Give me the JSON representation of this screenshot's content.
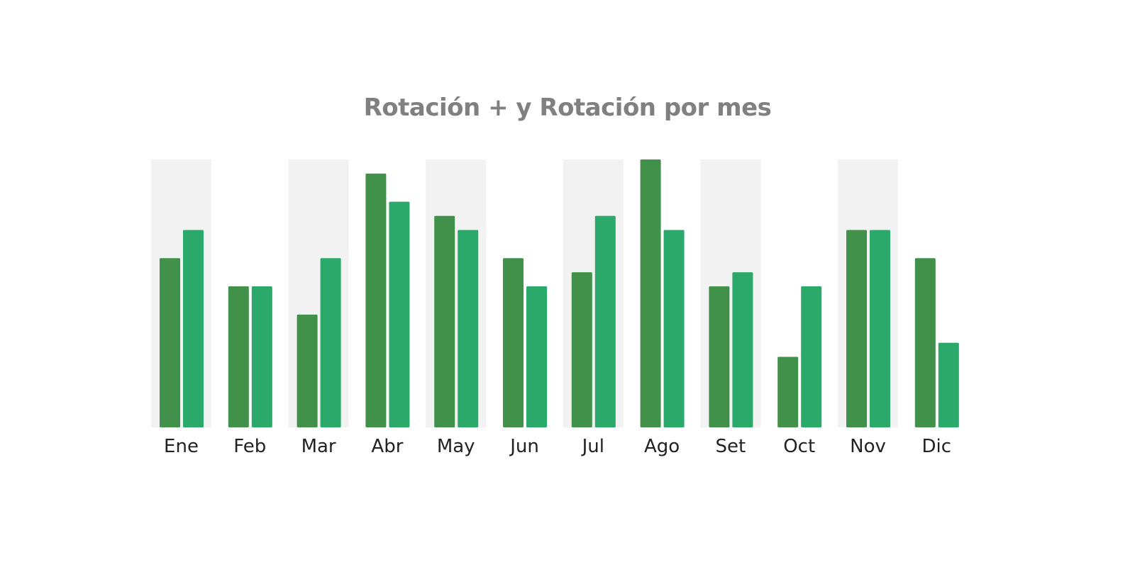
{
  "chart_data": {
    "type": "bar",
    "title": "Rotación + y Rotación por mes",
    "xlabel": "",
    "ylabel": "",
    "categories": [
      "Ene",
      "Feb",
      "Mar",
      "Abr",
      "May",
      "Jun",
      "Jul",
      "Ago",
      "Set",
      "Oct",
      "Nov",
      "Dic"
    ],
    "series": [
      {
        "values": [
          12,
          10,
          8,
          18,
          15,
          12,
          11,
          19,
          10,
          5,
          14,
          12
        ]
      },
      {
        "values": [
          14,
          10,
          12,
          16,
          14,
          10,
          15,
          14,
          11,
          10,
          14,
          6
        ]
      }
    ],
    "ylim": [
      0,
      19
    ],
    "grid": false,
    "legend": "none",
    "colors": {
      "series": [
        "#41914a",
        "#2aa96a"
      ],
      "band": "#f2f2f2",
      "title": "#808080"
    }
  }
}
